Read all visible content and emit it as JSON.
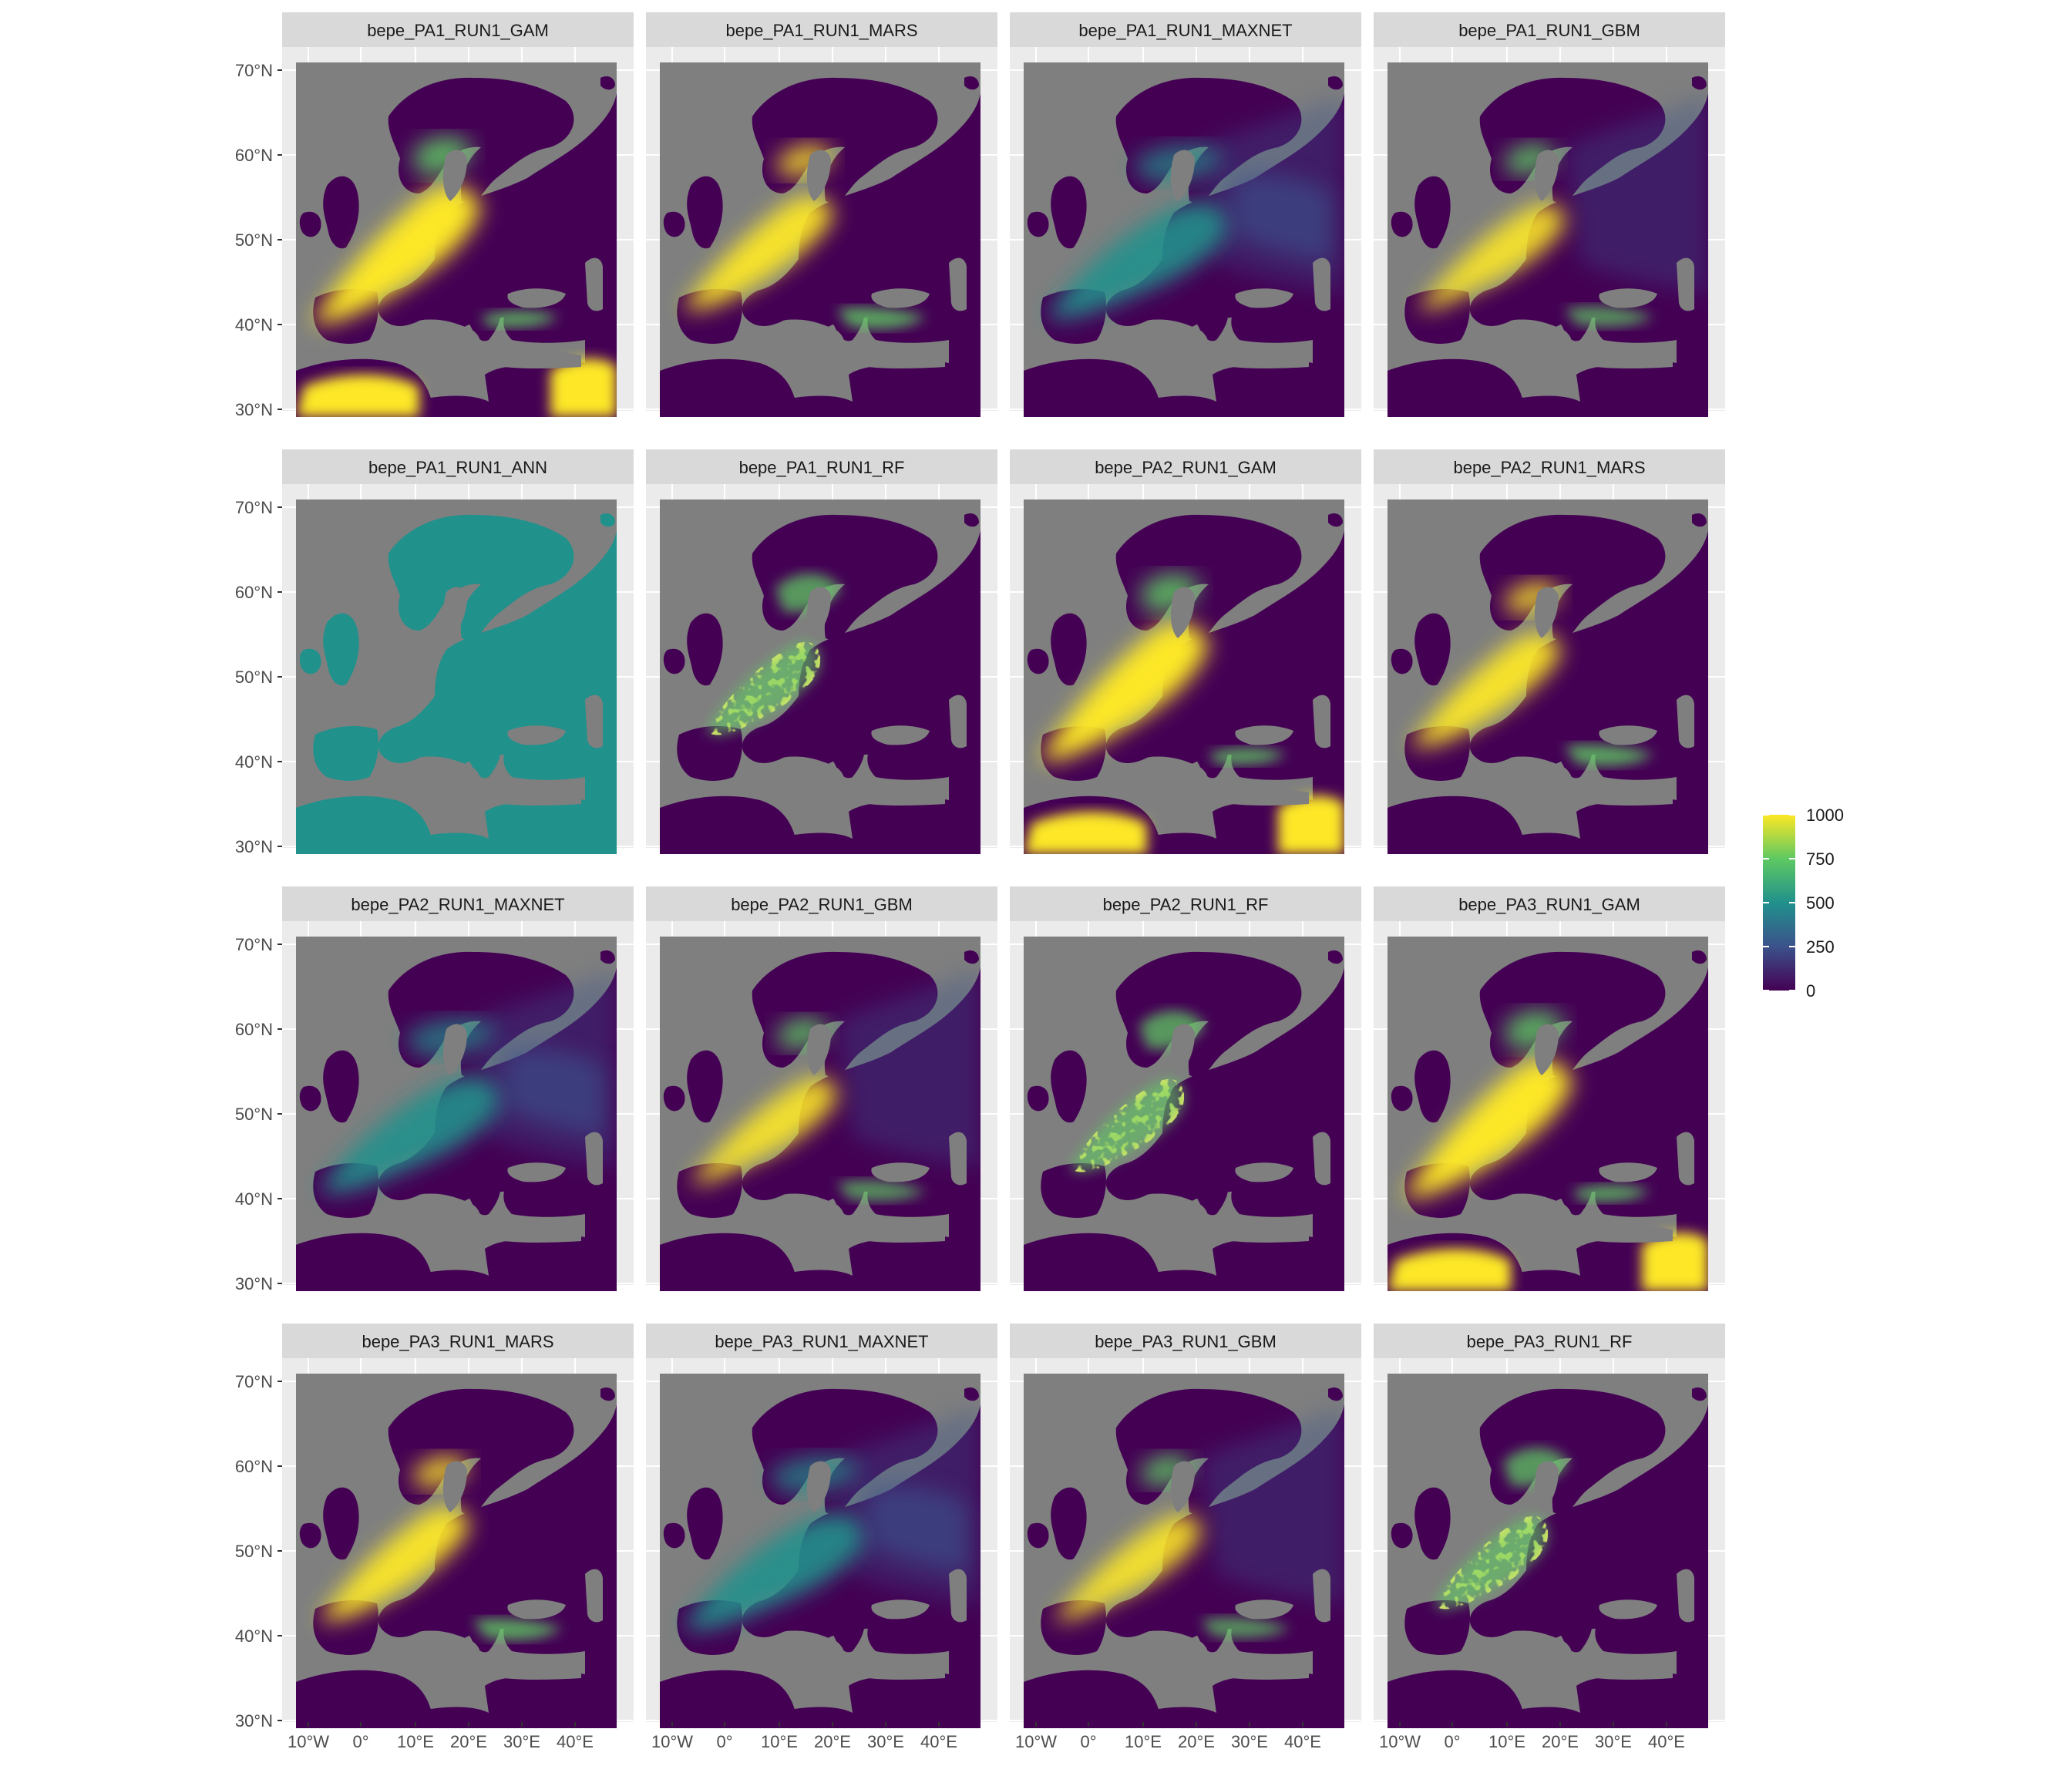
{
  "figure": {
    "colorbar": {
      "ticks": [
        1000,
        750,
        500,
        250,
        0
      ],
      "range": [
        0,
        1000
      ],
      "colors": [
        "#440154",
        "#3b528b",
        "#21918c",
        "#5ec962",
        "#fde725"
      ]
    },
    "latitude_ticks": [
      "70°N",
      "60°N",
      "50°N",
      "40°N",
      "30°N"
    ],
    "longitude_ticks": [
      "10°W",
      "0°",
      "10°E",
      "20°E",
      "30°E",
      "40°E"
    ],
    "colors": {
      "panel_background": "#ebebeb",
      "strip_background": "#d9d9d9",
      "map_background": "#7f7f7f",
      "grid": "#ffffff"
    }
  },
  "panels": [
    {
      "title": "bepe_PA1_RUN1_GAM",
      "pattern": "gam"
    },
    {
      "title": "bepe_PA1_RUN1_MARS",
      "pattern": "mars"
    },
    {
      "title": "bepe_PA1_RUN1_MAXNET",
      "pattern": "maxnet"
    },
    {
      "title": "bepe_PA1_RUN1_GBM",
      "pattern": "gbm"
    },
    {
      "title": "bepe_PA1_RUN1_ANN",
      "pattern": "ann"
    },
    {
      "title": "bepe_PA1_RUN1_RF",
      "pattern": "rf"
    },
    {
      "title": "bepe_PA2_RUN1_GAM",
      "pattern": "gam"
    },
    {
      "title": "bepe_PA2_RUN1_MARS",
      "pattern": "mars"
    },
    {
      "title": "bepe_PA2_RUN1_MAXNET",
      "pattern": "maxnet"
    },
    {
      "title": "bepe_PA2_RUN1_GBM",
      "pattern": "gbm"
    },
    {
      "title": "bepe_PA2_RUN1_RF",
      "pattern": "rf"
    },
    {
      "title": "bepe_PA3_RUN1_GAM",
      "pattern": "gam"
    },
    {
      "title": "bepe_PA3_RUN1_MARS",
      "pattern": "mars"
    },
    {
      "title": "bepe_PA3_RUN1_MAXNET",
      "pattern": "maxnet"
    },
    {
      "title": "bepe_PA3_RUN1_GBM",
      "pattern": "gbm"
    },
    {
      "title": "bepe_PA3_RUN1_RF",
      "pattern": "rf"
    }
  ]
}
